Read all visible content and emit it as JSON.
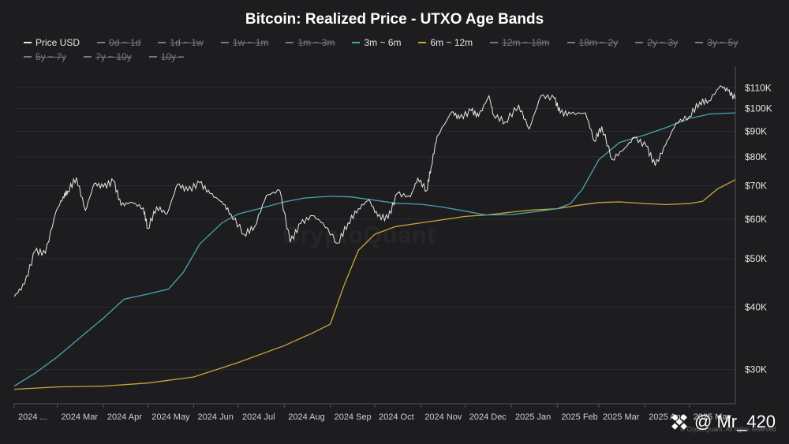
{
  "page": {
    "watermark": "CryptoQuant",
    "copyright": "© CryptoQuant. All rights reserved",
    "overlay_tag": "@ Mr_420",
    "overlay_logo": "binance-square-logo-icon"
  },
  "chart_data": {
    "type": "line",
    "title": "Bitcoin: Realized Price - UTXO Age Bands",
    "y_scale": "log",
    "ylim": [
      26000,
      118000
    ],
    "y_ticks": [
      30000,
      40000,
      50000,
      60000,
      70000,
      80000,
      90000,
      100000,
      110000
    ],
    "y_tick_labels": [
      "$30K",
      "$40K",
      "$50K",
      "$60K",
      "$70K",
      "$80K",
      "$90K",
      "$100K",
      "$110K"
    ],
    "x_range": [
      "2024-02-01",
      "2025-06-01"
    ],
    "x_ticks": [
      {
        "date": "2024-02-01",
        "label": "2024 ..."
      },
      {
        "date": "2024-03-01",
        "label": "2024 Mar"
      },
      {
        "date": "2024-04-01",
        "label": "2024 Apr"
      },
      {
        "date": "2024-05-01",
        "label": "2024 May"
      },
      {
        "date": "2024-06-01",
        "label": "2024 Jun"
      },
      {
        "date": "2024-07-01",
        "label": "2024 Jul"
      },
      {
        "date": "2024-08-01",
        "label": "2024 Aug"
      },
      {
        "date": "2024-09-01",
        "label": "2024 Sep"
      },
      {
        "date": "2024-10-01",
        "label": "2024 Oct"
      },
      {
        "date": "2024-11-01",
        "label": "2024 Nov"
      },
      {
        "date": "2024-12-01",
        "label": "2024 Dec"
      },
      {
        "date": "2025-01-01",
        "label": "2025 Jan"
      },
      {
        "date": "2025-02-01",
        "label": "2025 Feb"
      },
      {
        "date": "2025-03-01",
        "label": "2025 Mar"
      },
      {
        "date": "2025-04-01",
        "label": "2025 Apr"
      },
      {
        "date": "2025-05-01",
        "label": "2025 May"
      }
    ],
    "grid": {
      "horizontal": true,
      "vertical": false
    },
    "legend_position": "top",
    "legend": [
      {
        "name": "Price USD",
        "color": "#e8e8e8",
        "visible": true
      },
      {
        "name": "0d ~ 1d",
        "color": "#7a7a7e",
        "visible": false
      },
      {
        "name": "1d ~ 1w",
        "color": "#7a7a7e",
        "visible": false
      },
      {
        "name": "1w ~ 1m",
        "color": "#7a7a7e",
        "visible": false
      },
      {
        "name": "1m ~ 3m",
        "color": "#7a7a7e",
        "visible": false
      },
      {
        "name": "3m ~ 6m",
        "color": "#4aa3b0",
        "visible": true
      },
      {
        "name": "6m ~ 12m",
        "color": "#c9a63a",
        "visible": true
      },
      {
        "name": "12m ~ 18m",
        "color": "#7a7a7e",
        "visible": false
      },
      {
        "name": "18m ~ 2y",
        "color": "#7a7a7e",
        "visible": false
      },
      {
        "name": "2y ~ 3y",
        "color": "#7a7a7e",
        "visible": false
      },
      {
        "name": "3y ~ 5y",
        "color": "#7a7a7e",
        "visible": false
      },
      {
        "name": "5y ~ 7y",
        "color": "#7a7a7e",
        "visible": false
      },
      {
        "name": "7y ~ 10y",
        "color": "#7a7a7e",
        "visible": false
      },
      {
        "name": "10y ~",
        "color": "#7a7a7e",
        "visible": false
      }
    ],
    "series": [
      {
        "name": "Price USD",
        "color": "#e8e8e8",
        "points": [
          [
            "2024-02-01",
            42000
          ],
          [
            "2024-02-08",
            44500
          ],
          [
            "2024-02-15",
            51800
          ],
          [
            "2024-02-22",
            51300
          ],
          [
            "2024-02-29",
            62000
          ],
          [
            "2024-03-05",
            66500
          ],
          [
            "2024-03-08",
            68300
          ],
          [
            "2024-03-14",
            72700
          ],
          [
            "2024-03-20",
            62500
          ],
          [
            "2024-03-26",
            70800
          ],
          [
            "2024-04-01",
            69600
          ],
          [
            "2024-04-08",
            71600
          ],
          [
            "2024-04-13",
            64000
          ],
          [
            "2024-04-20",
            64900
          ],
          [
            "2024-04-28",
            63200
          ],
          [
            "2024-05-01",
            57500
          ],
          [
            "2024-05-07",
            63500
          ],
          [
            "2024-05-14",
            61500
          ],
          [
            "2024-05-21",
            70500
          ],
          [
            "2024-05-28",
            68500
          ],
          [
            "2024-06-05",
            71000
          ],
          [
            "2024-06-12",
            67500
          ],
          [
            "2024-06-20",
            65000
          ],
          [
            "2024-06-26",
            61500
          ],
          [
            "2024-07-05",
            56000
          ],
          [
            "2024-07-12",
            58000
          ],
          [
            "2024-07-20",
            67000
          ],
          [
            "2024-07-29",
            68500
          ],
          [
            "2024-08-05",
            54000
          ],
          [
            "2024-08-12",
            58800
          ],
          [
            "2024-08-20",
            61000
          ],
          [
            "2024-08-27",
            59000
          ],
          [
            "2024-09-06",
            53700
          ],
          [
            "2024-09-13",
            59000
          ],
          [
            "2024-09-20",
            63000
          ],
          [
            "2024-09-27",
            65700
          ],
          [
            "2024-10-03",
            60800
          ],
          [
            "2024-10-10",
            60300
          ],
          [
            "2024-10-16",
            67500
          ],
          [
            "2024-10-25",
            66500
          ],
          [
            "2024-10-30",
            72500
          ],
          [
            "2024-11-05",
            68500
          ],
          [
            "2024-11-08",
            76500
          ],
          [
            "2024-11-12",
            88000
          ],
          [
            "2024-11-22",
            98500
          ],
          [
            "2024-11-27",
            95500
          ],
          [
            "2024-12-05",
            99000
          ],
          [
            "2024-12-10",
            96500
          ],
          [
            "2024-12-17",
            106000
          ],
          [
            "2024-12-20",
            97000
          ],
          [
            "2024-12-28",
            94000
          ],
          [
            "2025-01-06",
            101500
          ],
          [
            "2025-01-13",
            91000
          ],
          [
            "2025-01-21",
            106000
          ],
          [
            "2025-01-30",
            104800
          ],
          [
            "2025-02-03",
            98000
          ],
          [
            "2025-02-10",
            97500
          ],
          [
            "2025-02-20",
            98000
          ],
          [
            "2025-02-26",
            86000
          ],
          [
            "2025-03-03",
            92000
          ],
          [
            "2025-03-10",
            79000
          ],
          [
            "2025-03-18",
            83000
          ],
          [
            "2025-03-25",
            87500
          ],
          [
            "2025-04-02",
            84000
          ],
          [
            "2025-04-08",
            76800
          ],
          [
            "2025-04-15",
            84500
          ],
          [
            "2025-04-22",
            93500
          ],
          [
            "2025-05-01",
            96500
          ],
          [
            "2025-05-08",
            103000
          ],
          [
            "2025-05-14",
            103500
          ],
          [
            "2025-05-22",
            111000
          ],
          [
            "2025-05-27",
            108500
          ],
          [
            "2025-06-01",
            104500
          ]
        ]
      },
      {
        "name": "3m ~ 6m",
        "color": "#4aa3b0",
        "points": [
          [
            "2024-02-01",
            27800
          ],
          [
            "2024-02-15",
            29500
          ],
          [
            "2024-03-01",
            31800
          ],
          [
            "2024-03-15",
            34500
          ],
          [
            "2024-04-01",
            38000
          ],
          [
            "2024-04-15",
            41500
          ],
          [
            "2024-05-01",
            42500
          ],
          [
            "2024-05-15",
            43500
          ],
          [
            "2024-05-25",
            47000
          ],
          [
            "2024-06-05",
            53500
          ],
          [
            "2024-06-20",
            59000
          ],
          [
            "2024-07-01",
            61500
          ],
          [
            "2024-07-15",
            63000
          ],
          [
            "2024-08-01",
            65000
          ],
          [
            "2024-08-15",
            66200
          ],
          [
            "2024-09-01",
            66700
          ],
          [
            "2024-09-15",
            66500
          ],
          [
            "2024-10-01",
            65500
          ],
          [
            "2024-10-15",
            64600
          ],
          [
            "2024-11-01",
            64300
          ],
          [
            "2024-11-15",
            63500
          ],
          [
            "2024-12-01",
            62300
          ],
          [
            "2024-12-15",
            61200
          ],
          [
            "2025-01-01",
            61300
          ],
          [
            "2025-01-15",
            62000
          ],
          [
            "2025-02-01",
            63000
          ],
          [
            "2025-02-10",
            64500
          ],
          [
            "2025-02-18",
            69000
          ],
          [
            "2025-03-01",
            79000
          ],
          [
            "2025-03-15",
            85500
          ],
          [
            "2025-04-01",
            88500
          ],
          [
            "2025-04-15",
            91500
          ],
          [
            "2025-05-01",
            95500
          ],
          [
            "2025-05-15",
            97500
          ],
          [
            "2025-06-01",
            98000
          ]
        ]
      },
      {
        "name": "6m ~ 12m",
        "color": "#c9a63a",
        "points": [
          [
            "2024-02-01",
            27400
          ],
          [
            "2024-03-01",
            27700
          ],
          [
            "2024-04-01",
            27800
          ],
          [
            "2024-05-01",
            28200
          ],
          [
            "2024-06-01",
            29000
          ],
          [
            "2024-07-01",
            31000
          ],
          [
            "2024-08-01",
            33500
          ],
          [
            "2024-08-20",
            35500
          ],
          [
            "2024-09-01",
            37000
          ],
          [
            "2024-09-10",
            44000
          ],
          [
            "2024-09-20",
            52000
          ],
          [
            "2024-10-01",
            56000
          ],
          [
            "2024-10-15",
            58000
          ],
          [
            "2024-11-01",
            59000
          ],
          [
            "2024-11-15",
            59800
          ],
          [
            "2024-12-01",
            60800
          ],
          [
            "2024-12-15",
            61200
          ],
          [
            "2025-01-01",
            62000
          ],
          [
            "2025-01-15",
            62600
          ],
          [
            "2025-02-01",
            63000
          ],
          [
            "2025-02-15",
            64000
          ],
          [
            "2025-03-01",
            64800
          ],
          [
            "2025-03-15",
            65000
          ],
          [
            "2025-04-01",
            64500
          ],
          [
            "2025-04-15",
            64200
          ],
          [
            "2025-05-01",
            64500
          ],
          [
            "2025-05-10",
            65200
          ],
          [
            "2025-05-20",
            69000
          ],
          [
            "2025-06-01",
            72000
          ]
        ]
      }
    ]
  }
}
